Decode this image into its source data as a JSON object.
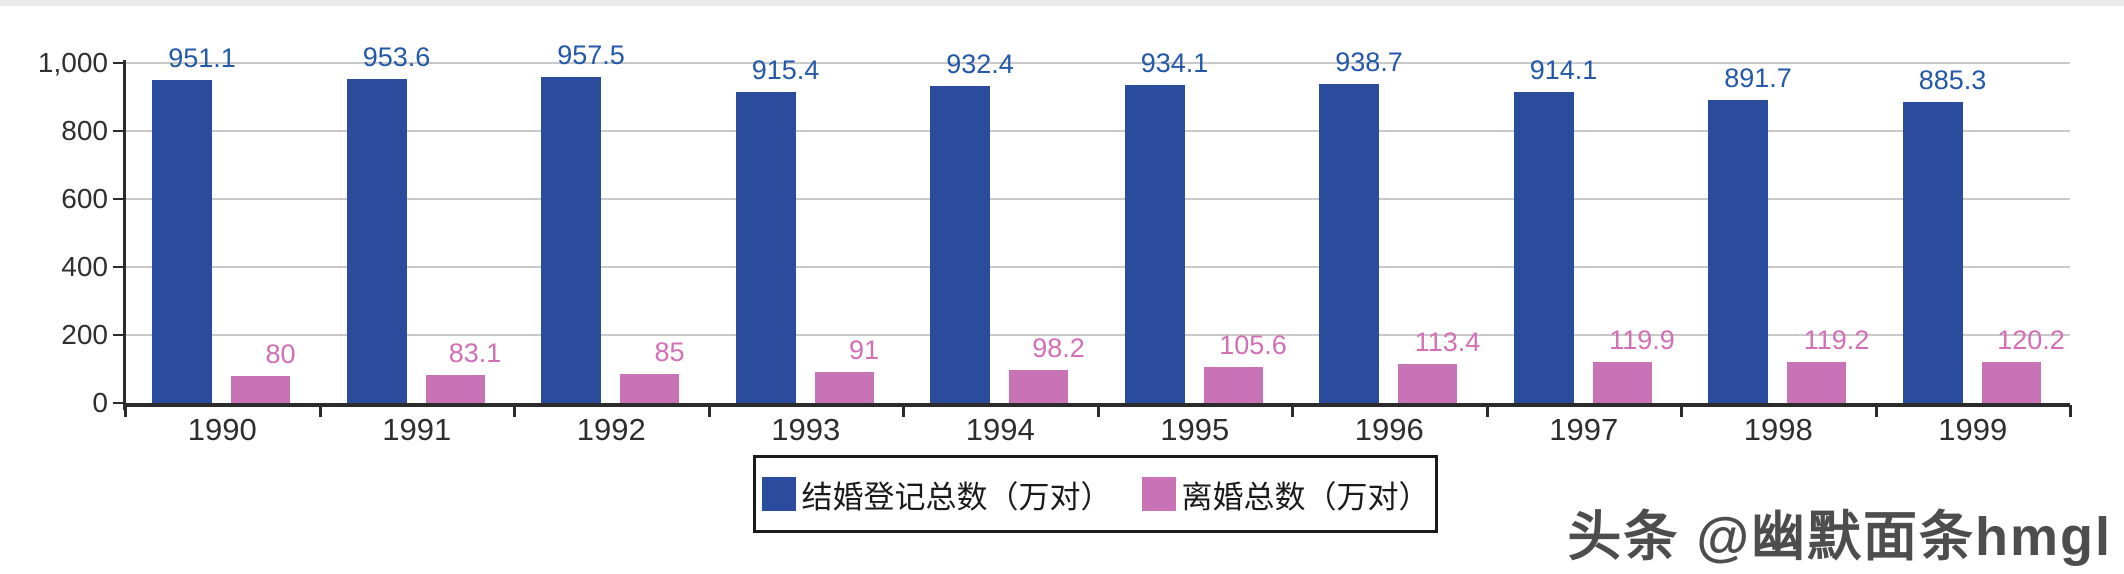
{
  "chart_data": {
    "type": "bar",
    "title": "",
    "xlabel": "",
    "ylabel": "",
    "categories": [
      "1990",
      "1991",
      "1992",
      "1993",
      "1994",
      "1995",
      "1996",
      "1997",
      "1998",
      "1999"
    ],
    "series": [
      {
        "name": "结婚登记总数（万对）",
        "color": "#2b4b9d",
        "label_color": "#2458a8",
        "values": [
          951.1,
          953.6,
          957.5,
          915.4,
          932.4,
          934.1,
          938.7,
          914.1,
          891.7,
          885.3
        ],
        "labels": [
          "951.1",
          "953.6",
          "957.5",
          "915.4",
          "932.4",
          "934.1",
          "938.7",
          "914.1",
          "891.7",
          "885.3"
        ]
      },
      {
        "name": "离婚总数（万对）",
        "color": "#c873b6",
        "label_color": "#d26fb5",
        "values": [
          80,
          83.1,
          85,
          91,
          98.2,
          105.6,
          113.4,
          119.9,
          119.2,
          120.2
        ],
        "labels": [
          "80",
          "83.1",
          "85",
          "91",
          "98.2",
          "105.6",
          "113.4",
          "119.9",
          "119.2",
          "120.2"
        ]
      }
    ],
    "y_axis": {
      "tick_values": [
        0,
        200,
        400,
        600,
        800,
        1000
      ],
      "tick_labels": [
        "0",
        "200",
        "400",
        "600",
        "800",
        "1,000"
      ],
      "max": 1000
    },
    "ylim": [
      0,
      1000
    ],
    "grid": true,
    "legend_position": "bottom"
  },
  "colors": {
    "axis": "#2b2b2b",
    "grid": "#c9c9c9",
    "background": "#ffffff",
    "watermark_text": "#4d4d4d"
  },
  "watermark": {
    "text": "头条 @幽默面条hmgl"
  }
}
